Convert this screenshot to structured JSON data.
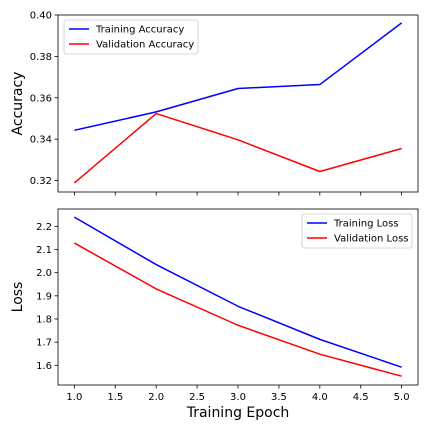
{
  "chart_data": [
    {
      "type": "line",
      "x": [
        1,
        2,
        3,
        4,
        5
      ],
      "ylabel": "Accuracy",
      "xlabel": "",
      "xlim": [
        0.8,
        5.2
      ],
      "ylim": [
        0.3145,
        0.4
      ],
      "yticks": [
        0.32,
        0.34,
        0.36,
        0.38,
        0.4
      ],
      "ytick_labels": [
        "0.32",
        "0.34",
        "0.36",
        "0.38",
        "0.40"
      ],
      "show_xtick_labels": false,
      "legend_position": "top-left",
      "grid": false,
      "series": [
        {
          "name": "Training Accuracy",
          "color": "#0000ff",
          "values": [
            0.3443,
            0.3532,
            0.3645,
            0.3664,
            0.3962
          ]
        },
        {
          "name": "Validation Accuracy",
          "color": "#ff0000",
          "values": [
            0.3189,
            0.3524,
            0.3397,
            0.3244,
            0.3355
          ]
        }
      ]
    },
    {
      "type": "line",
      "x": [
        1,
        2,
        3,
        4,
        5
      ],
      "ylabel": "Loss",
      "xlabel": "Training Epoch",
      "xlim": [
        0.8,
        5.2
      ],
      "ylim": [
        1.515,
        2.275
      ],
      "yticks": [
        1.6,
        1.7,
        1.8,
        1.9,
        2.0,
        2.1,
        2.2
      ],
      "ytick_labels": [
        "1.6",
        "1.7",
        "1.8",
        "1.9",
        "2.0",
        "2.1",
        "2.2"
      ],
      "xticks": [
        1.0,
        1.5,
        2.0,
        2.5,
        3.0,
        3.5,
        4.0,
        4.5,
        5.0
      ],
      "xtick_labels": [
        "1.0",
        "1.5",
        "2.0",
        "2.5",
        "3.0",
        "3.5",
        "4.0",
        "4.5",
        "5.0"
      ],
      "show_xtick_labels": true,
      "legend_position": "top-right",
      "grid": false,
      "series": [
        {
          "name": "Training Loss",
          "color": "#0000ff",
          "values": [
            2.24,
            2.035,
            1.855,
            1.712,
            1.592
          ]
        },
        {
          "name": "Validation Loss",
          "color": "#ff0000",
          "values": [
            2.128,
            1.93,
            1.773,
            1.648,
            1.553
          ]
        }
      ]
    }
  ]
}
